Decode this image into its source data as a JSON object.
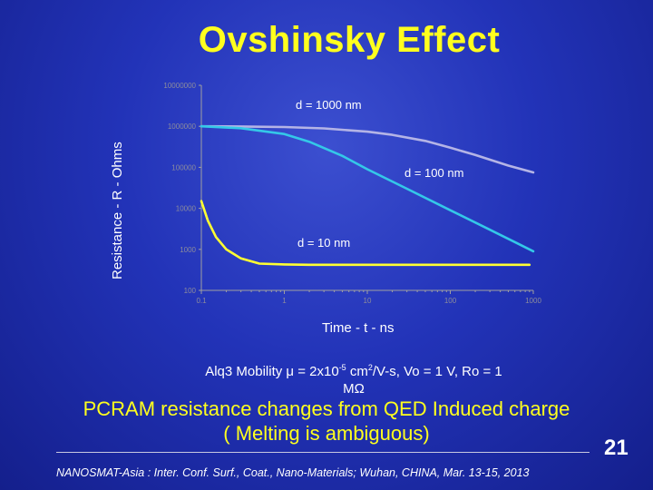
{
  "slide": {
    "title": "Ovshinsky Effect",
    "xlabel": "Time - t - ns",
    "mobility_line1": "Alq3 Mobility μ = 2x10",
    "mobility_exp": "-5",
    "mobility_line1b": " cm",
    "mobility_sq": "2",
    "mobility_line1c": "/V-s, Vo = 1 V, Ro = 1",
    "mobility_line2": "MΩ",
    "headline_line1": "PCRAM resistance changes from QED Induced charge",
    "headline_line2": "( Melting  is ambiguous)",
    "page_number": "21",
    "footer": "NANOSMAT-Asia : Inter. Conf. Surf., Coat., Nano-Materials; Wuhan, CHINA, Mar. 13-15, 2013"
  },
  "colors": {
    "title": "#ffff1e",
    "series_1000": "#b4b4e6",
    "series_100": "#34c8e8",
    "series_10": "#ffff32",
    "axis": "#a0a0a0"
  },
  "chart_data": {
    "type": "line",
    "xscale": "log",
    "yscale": "log",
    "xlim": [
      0.1,
      1000
    ],
    "ylim": [
      100,
      10000000
    ],
    "xlabel": "Time - t - ns",
    "ylabel": "Resistance - R - Ohms",
    "x_ticks": [
      "0.1",
      "1",
      "10",
      "100",
      "1000"
    ],
    "y_ticks": [
      "100",
      "1000",
      "10000",
      "100000",
      "1000000",
      "10000000"
    ],
    "annotations": [
      "d = 1000 nm",
      "d = 100 nm",
      "d = 10 nm"
    ],
    "series": [
      {
        "name": "d = 1000 nm",
        "color": "#b4b4e6",
        "x": [
          0.1,
          0.3,
          1,
          3,
          10,
          20,
          50,
          100,
          200,
          500,
          1000
        ],
        "y": [
          1000000,
          990000,
          960000,
          890000,
          740000,
          620000,
          440000,
          300000,
          200000,
          110000,
          75000
        ]
      },
      {
        "name": "d = 100 nm",
        "color": "#34c8e8",
        "x": [
          0.1,
          0.3,
          1,
          2,
          5,
          10,
          30,
          100,
          300,
          600,
          1000
        ],
        "y": [
          1000000,
          900000,
          650000,
          420000,
          190000,
          90000,
          30000,
          9000,
          3000,
          1500,
          900
        ]
      },
      {
        "name": "d = 10 nm",
        "color": "#ffff32",
        "x": [
          0.1,
          0.12,
          0.15,
          0.2,
          0.3,
          0.5,
          1,
          2,
          10,
          100,
          900
        ],
        "y": [
          15000,
          5000,
          2000,
          1000,
          600,
          450,
          430,
          420,
          420,
          420,
          420
        ]
      }
    ]
  },
  "labels": {
    "ylabel": "Resistance - R - Ohms"
  }
}
